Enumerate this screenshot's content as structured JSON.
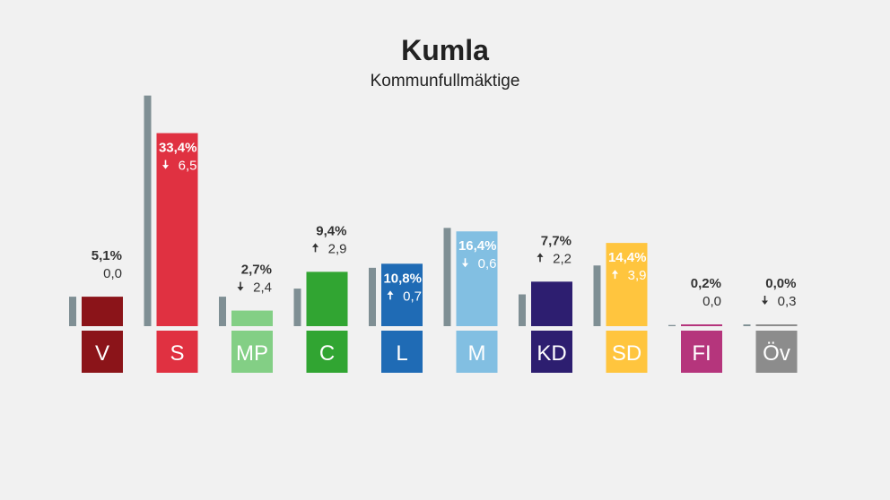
{
  "header": {
    "title": "Kumla",
    "subtitle": "Kommunfullmäktige"
  },
  "chart_data": {
    "type": "bar",
    "title": "Kumla",
    "subtitle": "Kommunfullmäktige",
    "categories": [
      "V",
      "S",
      "MP",
      "C",
      "L",
      "M",
      "KD",
      "SD",
      "FI",
      "Öv"
    ],
    "series": [
      {
        "name": "",
        "values": [
          5.1,
          33.4,
          2.7,
          9.4,
          10.8,
          16.4,
          7.7,
          14.4,
          0.2,
          0.0
        ]
      },
      {
        "name": "",
        "values": [
          5.1,
          39.9,
          5.1,
          6.5,
          10.1,
          17.0,
          5.5,
          10.5,
          0.2,
          0.3
        ]
      }
    ],
    "labels": [
      "5,1%",
      "33,4%",
      "2,7%",
      "9,4%",
      "10,8%",
      "16,4%",
      "7,7%",
      "14,4%",
      "0,2%",
      "0,0%"
    ],
    "changes": [
      "0,0",
      "6,5",
      "2,4",
      "2,9",
      "0,7",
      "0,6",
      "2,2",
      "3,9",
      "0,0",
      "0,3"
    ],
    "change_direction": [
      "none",
      "down",
      "down",
      "up",
      "up",
      "down",
      "up",
      "up",
      "none",
      "down"
    ],
    "label_inside": [
      false,
      true,
      false,
      false,
      true,
      true,
      false,
      true,
      false,
      false
    ],
    "colors": [
      "#8b1419",
      "#e03141",
      "#83cf85",
      "#31a532",
      "#1f6bb5",
      "#82bfe2",
      "#2d1e70",
      "#ffc53e",
      "#b5357c",
      "#8c8c8c"
    ],
    "previous_color": "#7f8f94",
    "ylim": [
      0,
      40
    ]
  }
}
